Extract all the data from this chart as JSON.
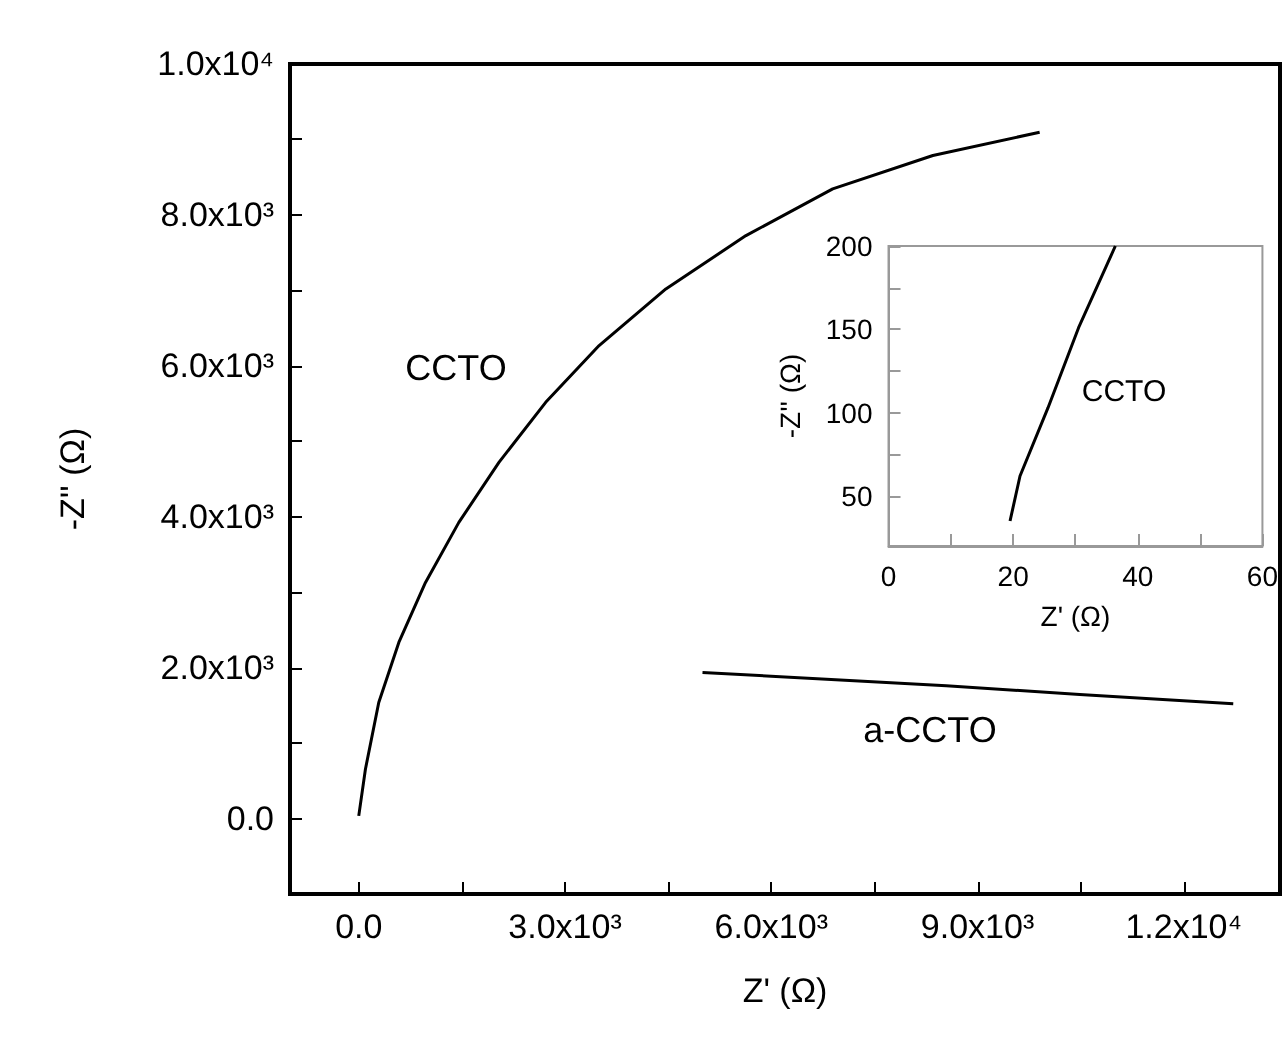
{
  "chart_data": [
    {
      "type": "line",
      "xlabel": "Z' (Ω)",
      "ylabel": "-Z'' (Ω)",
      "xlim": [
        -1000,
        13400
      ],
      "ylim": [
        -1000,
        10000
      ],
      "xticks": [
        {
          "value": 0,
          "label": "0.0"
        },
        {
          "value": 1500,
          "label": null
        },
        {
          "value": 3000,
          "label": "3.0x10³"
        },
        {
          "value": 4500,
          "label": null
        },
        {
          "value": 6000,
          "label": "6.0x10³"
        },
        {
          "value": 7500,
          "label": null
        },
        {
          "value": 9000,
          "label": "9.0x10³"
        },
        {
          "value": 10500,
          "label": null
        },
        {
          "value": 12000,
          "label": "1.2x10⁴"
        }
      ],
      "yticks": [
        {
          "value": 0,
          "label": "0.0"
        },
        {
          "value": 1000,
          "label": null
        },
        {
          "value": 2000,
          "label": "2.0x10³"
        },
        {
          "value": 3000,
          "label": null
        },
        {
          "value": 4000,
          "label": "4.0x10³"
        },
        {
          "value": 5000,
          "label": null
        },
        {
          "value": 6000,
          "label": "6.0x10³"
        },
        {
          "value": 7000,
          "label": null
        },
        {
          "value": 8000,
          "label": "8.0x10³"
        },
        {
          "value": 9000,
          "label": null
        },
        {
          "value": 10000,
          "label": "1.0x10⁴"
        }
      ],
      "series": [
        {
          "color": "#000000",
          "x": [
            0,
            97,
            291,
            583,
            971,
            1456,
            2039,
            2719,
            3496,
            4467,
            5632,
            6894,
            8351,
            9904
          ],
          "values": [
            35,
            654,
            1538,
            2334,
            3129,
            3925,
            4720,
            5516,
            6268,
            7019,
            7726,
            8345,
            8787,
            9096
          ]
        },
        {
          "color": "#000000",
          "x": [
            5000,
            8545,
            10487,
            12720
          ],
          "values": [
            1936,
            1759,
            1644,
            1520
          ]
        }
      ],
      "annotations": [
        "CCTO",
        "a-CCTO"
      ]
    },
    {
      "type": "line",
      "xlabel": "Z' (Ω)",
      "ylabel": "-Z'' (Ω)",
      "xlim": [
        0,
        60
      ],
      "ylim": [
        20,
        200
      ],
      "xticks": [
        0,
        {
          "value": 10,
          "label": null
        },
        20,
        {
          "value": 30,
          "label": null
        },
        40,
        {
          "value": 50,
          "label": null
        },
        60
      ],
      "yticks": [
        50,
        {
          "value": 75,
          "label": null
        },
        100,
        {
          "value": 125,
          "label": null
        },
        150,
        {
          "value": 175,
          "label": null
        },
        200
      ],
      "series": [
        {
          "color": "#000000",
          "x": [
            19.5,
            21.1,
            25.6,
            30.5,
            36.4
          ],
          "values": [
            35,
            62,
            103,
            151,
            200
          ]
        }
      ],
      "annotations": [
        "CCTO"
      ]
    }
  ]
}
